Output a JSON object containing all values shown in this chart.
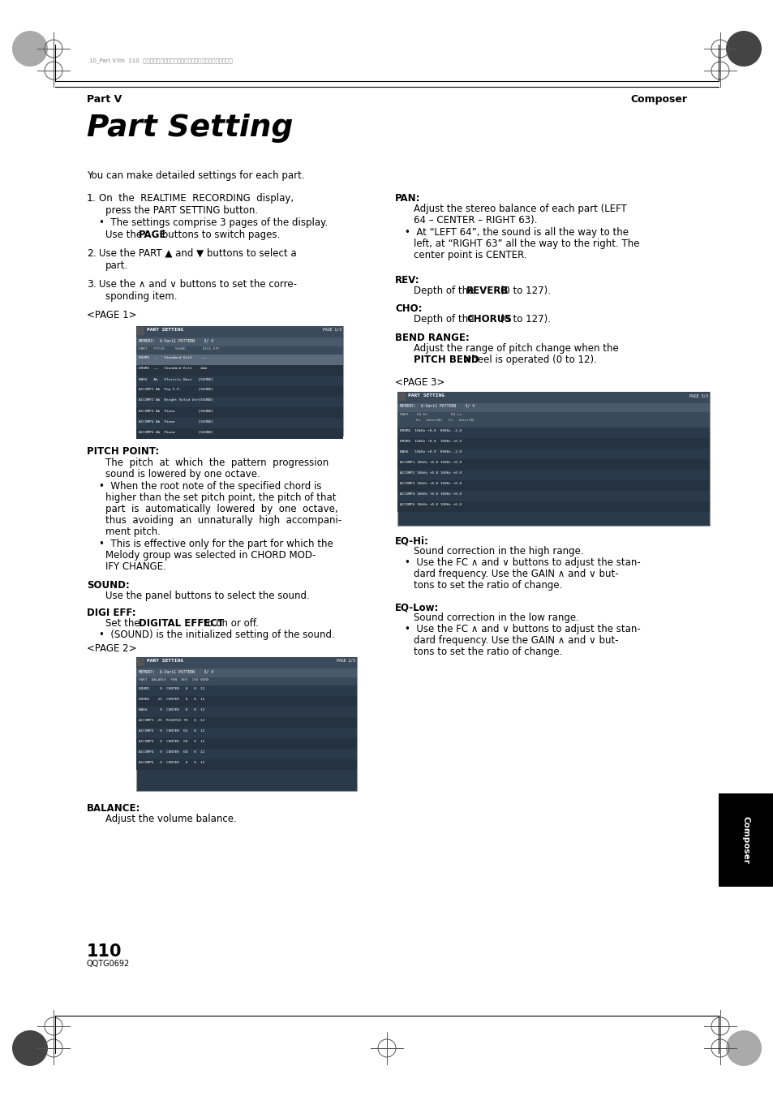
{
  "bg_color": "#ffffff",
  "page_width": 9.54,
  "page_height": 13.51,
  "dpi": 100,
  "header_left": "Part V",
  "header_right": "Composer",
  "title": "Part Setting",
  "intro": "You can make detailed settings for each part.",
  "page_number": "110",
  "page_code": "QQTG0692",
  "sidebar_text": "Composer",
  "screen1_rows": [
    "DRUM1   —   Standard Kit2    ———",
    "DRUM2  ——   Standard Kit1    ≡≡≡",
    "BASS   Ab   Electric Bass   {SOUND}",
    "ACCOMP1 Ab  Pop E.P.        {SOUND}",
    "ACCOMP2 Ab  Bright Solid Gtr{SOUND}",
    "ACCOMP3 Ab  Piano           {SOUND}",
    "ACCOMP4 Ab  Piano           {SOUND}",
    "ACCOMP6 Ab  Piano           {SOUND}"
  ],
  "screen2_rows": [
    "DRUM1     0  CENTER   0   0  12",
    "DRUM2   -15  CENTER   0   0  12",
    "BASS      0  CENTER   0   0  12",
    "ACCOMP1 -25  RIGHT62 70   0  12",
    "ACCOMP2   0  CENTER  65   0  12",
    "ACCOMP3   0  CENTER  60   0  12",
    "ACCOMP4   0  CENTER  68   0  12",
    "ACCOMP6   0  CENTER   0   0  12"
  ],
  "screen3_rows": [
    "DRUM1  10kHz +0.0  800Hz -2.0",
    "DRUM2  10kHz +0.0  100Hz +0.0",
    "BASS   10kHz +0.0  800Hz -2.0",
    "ACCOMP1 10kHz +0.0 100Hz +0.0",
    "ACCOMP2 10kHz +0.0 100Hz +0.0",
    "ACCOMP3 10kHz +0.0 100Hz +0.0",
    "ACCOMP4 10kHz +0.0 100Hz +0.0",
    "ACCOMP6 10kHz +0.0 100Hz +0.0"
  ]
}
